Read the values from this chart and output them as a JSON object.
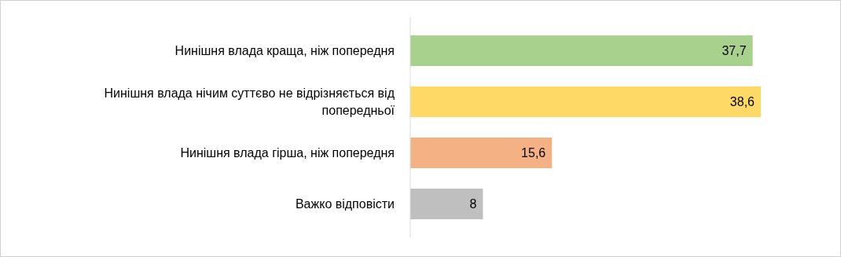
{
  "chart_data": {
    "type": "bar",
    "orientation": "horizontal",
    "categories": [
      "Нинішня влада краща, ніж попередня",
      "Нинішня влада нічим суттєво не відрізняється від попередньої",
      "Нинішня влада гірша, ніж попередня",
      "Важко відповісти"
    ],
    "values": [
      37.7,
      38.6,
      15.6,
      8
    ],
    "colors": [
      "#a9d18e",
      "#ffd966",
      "#f4b183",
      "#bfbfbf"
    ],
    "value_labels": [
      "37,7",
      "38,6",
      "15,6",
      "8"
    ]
  }
}
